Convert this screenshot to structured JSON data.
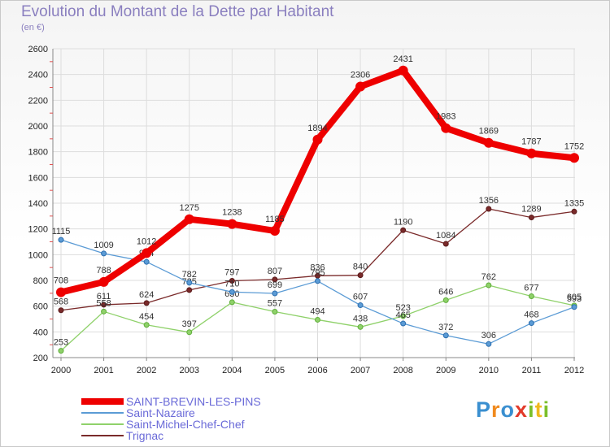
{
  "chart_data": {
    "type": "line",
    "title": "Evolution du Montant de la Dette par Habitant",
    "unit_label": "(en €)",
    "x": [
      "2000",
      "2001",
      "2002",
      "2003",
      "2004",
      "2005",
      "2006",
      "2007",
      "2008",
      "2009",
      "2010",
      "2011",
      "2012"
    ],
    "ylim": [
      200,
      2600
    ],
    "yticks": [
      200,
      400,
      600,
      800,
      1000,
      1200,
      1400,
      1600,
      1800,
      2000,
      2200,
      2400,
      2600
    ],
    "grid": true,
    "legend_position": "bottom-left",
    "series": [
      {
        "name": "SAINT-BREVIN-LES-PINS",
        "color": "#ee0000",
        "values": [
          708,
          788,
          1012,
          1275,
          1238,
          1185,
          1894,
          2306,
          2431,
          1983,
          1869,
          1787,
          1752
        ]
      },
      {
        "name": "Saint-Nazaire",
        "color": "#5b9bd5",
        "values": [
          1115,
          1009,
          944,
          782,
          710,
          699,
          795,
          607,
          465,
          372,
          306,
          468,
          593
        ]
      },
      {
        "name": "Saint-Michel-Chef-Chef",
        "color": "#8fd16a",
        "values": [
          253,
          558,
          454,
          397,
          630,
          557,
          494,
          438,
          523,
          646,
          762,
          677,
          605
        ]
      },
      {
        "name": "Trignac",
        "color": "#7a2a2a",
        "values": [
          568,
          611,
          624,
          725,
          797,
          807,
          836,
          840,
          1190,
          1084,
          1356,
          1289,
          1335
        ]
      }
    ]
  },
  "logo": {
    "letters": [
      "P",
      "r",
      "o",
      "x",
      "i",
      "t",
      "i"
    ],
    "colors": [
      "#3a8fd0",
      "#f08a1e",
      "#3a8fd0",
      "#e23a2a",
      "#7bbf2a",
      "#f0b81e",
      "#7bbf2a"
    ]
  }
}
